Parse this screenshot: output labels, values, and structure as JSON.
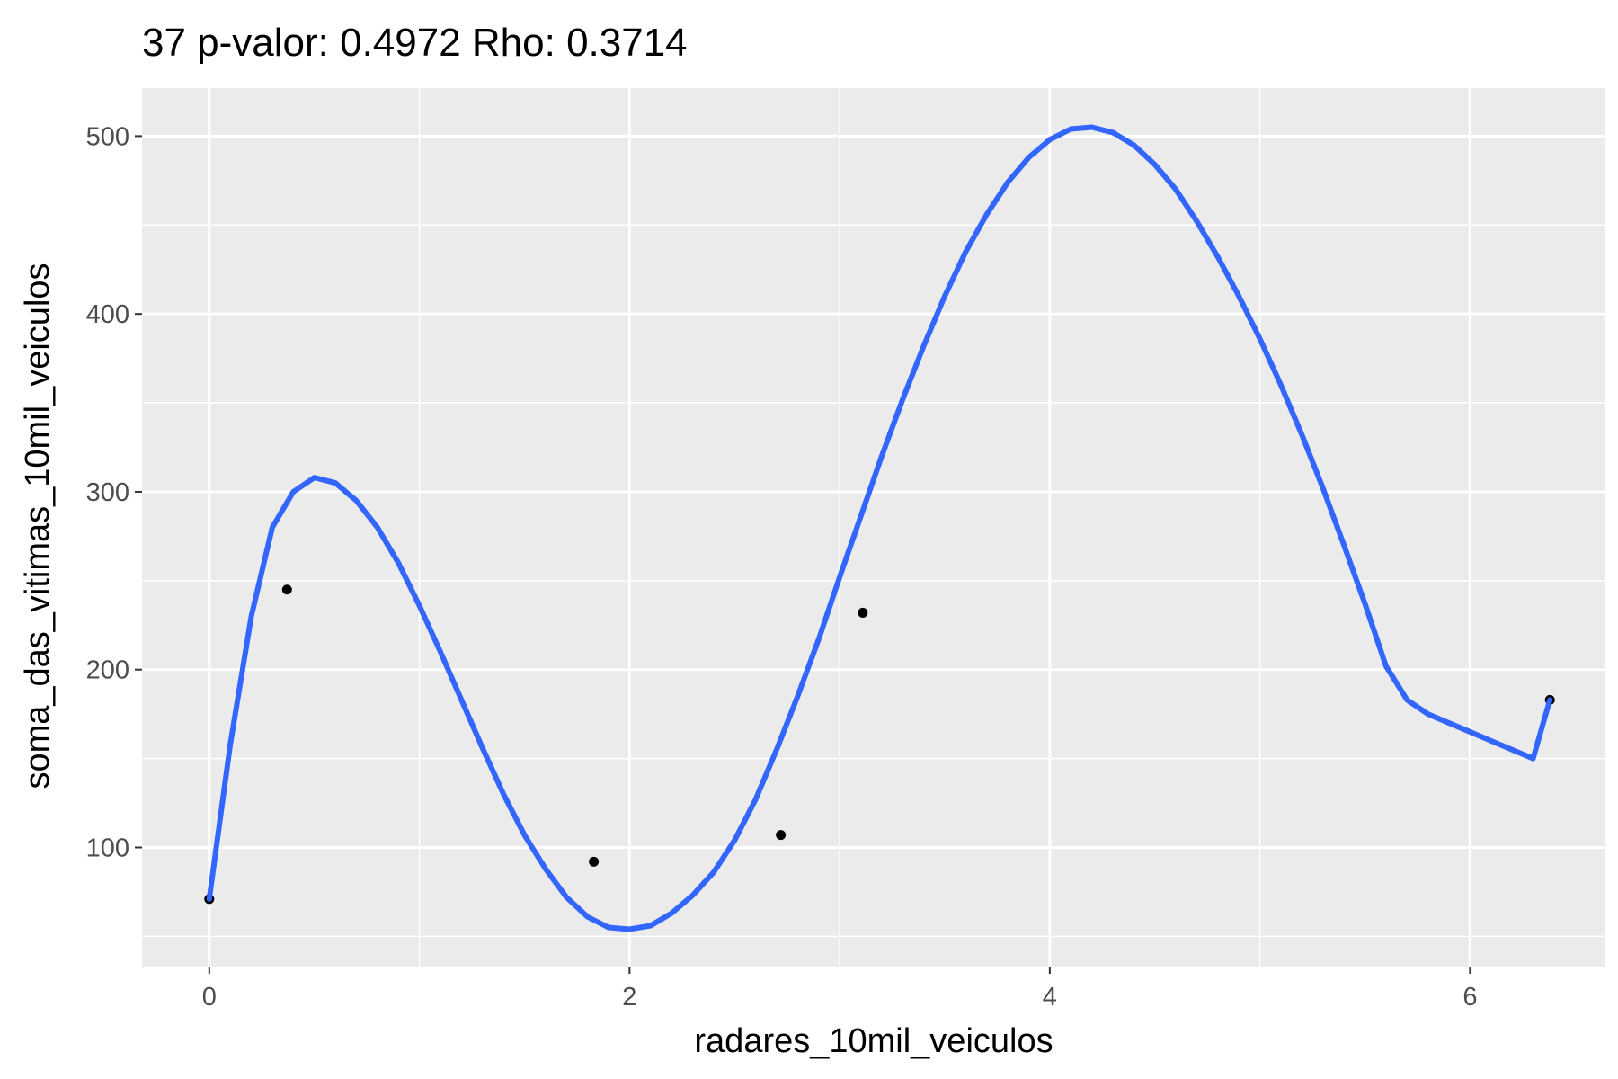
{
  "chart_data": {
    "type": "scatter",
    "title": "37 p-valor: 0.4972 Rho: 0.3714",
    "xlabel": "radares_10mil_veiculos",
    "ylabel": "soma_das_vitimas_10mil_veiculos",
    "xlim": [
      -0.32,
      6.64
    ],
    "ylim": [
      33,
      527
    ],
    "x_ticks": [
      0,
      2,
      4,
      6
    ],
    "x_tick_labels": [
      "0",
      "2",
      "4",
      "6"
    ],
    "y_ticks": [
      100,
      200,
      300,
      400,
      500
    ],
    "y_tick_labels": [
      "100",
      "200",
      "300",
      "400",
      "500"
    ],
    "grid": true,
    "legend": "none",
    "colors": {
      "panel": "#ebebeb",
      "grid": "#ffffff",
      "points": "#000000",
      "smooth": "#3366ff"
    },
    "points": {
      "x": [
        0.0,
        0.37,
        1.83,
        2.72,
        3.11,
        6.38
      ],
      "y": [
        71,
        245,
        92,
        107,
        232,
        183
      ]
    },
    "smooth": {
      "x": [
        0.0,
        0.1,
        0.2,
        0.3,
        0.4,
        0.5,
        0.6,
        0.7,
        0.8,
        0.9,
        1.0,
        1.1,
        1.2,
        1.3,
        1.4,
        1.5,
        1.6,
        1.7,
        1.8,
        1.9,
        2.0,
        2.1,
        2.2,
        2.3,
        2.4,
        2.5,
        2.6,
        2.7,
        2.8,
        2.9,
        3.0,
        3.1,
        3.2,
        3.3,
        3.4,
        3.5,
        3.6,
        3.7,
        3.8,
        3.9,
        4.0,
        4.1,
        4.2,
        4.3,
        4.4,
        4.5,
        4.6,
        4.7,
        4.8,
        4.9,
        5.0,
        5.1,
        5.2,
        5.3,
        5.4,
        5.5,
        5.6,
        5.7,
        5.8,
        5.9,
        6.0,
        6.1,
        6.2,
        6.3,
        6.38
      ],
      "y": [
        71,
        158,
        230,
        280,
        300,
        308,
        305,
        295,
        280,
        260,
        236,
        210,
        183,
        156,
        130,
        107,
        88,
        72,
        61,
        55,
        54,
        56,
        63,
        73,
        86,
        104,
        127,
        155,
        185,
        217,
        252,
        286,
        320,
        352,
        382,
        410,
        435,
        456,
        474,
        488,
        498,
        504,
        505,
        502,
        495,
        484,
        470,
        452,
        432,
        410,
        386,
        360,
        332,
        302,
        270,
        237,
        202,
        183,
        175,
        170,
        165,
        160,
        155,
        150,
        183
      ]
    }
  }
}
